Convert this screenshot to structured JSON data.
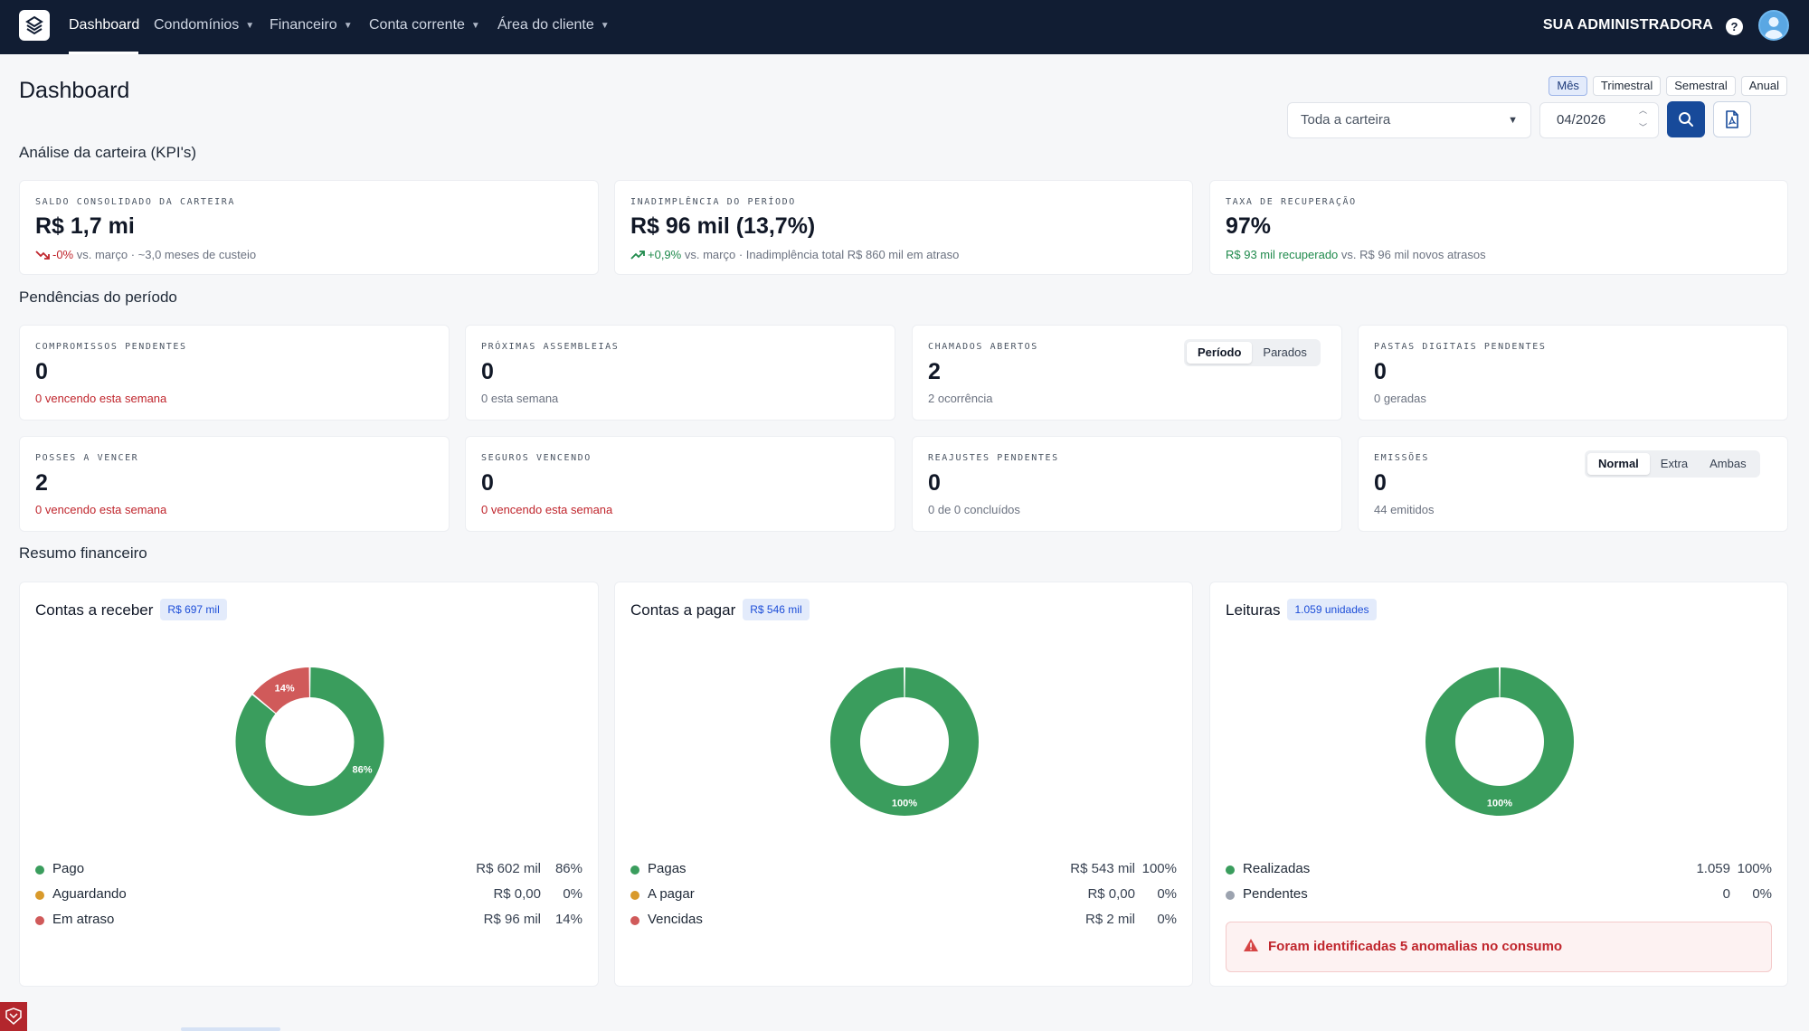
{
  "nav": {
    "items": [
      {
        "label": "Dashboard",
        "dropdown": false,
        "active": true
      },
      {
        "label": "Condomínios",
        "dropdown": true
      },
      {
        "label": "Financeiro",
        "dropdown": true
      },
      {
        "label": "Conta corrente",
        "dropdown": true
      },
      {
        "label": "Área do cliente",
        "dropdown": true
      }
    ],
    "org_name": "SUA ADMINISTRADORA",
    "help_icon": "?",
    "icons": [
      "logo-icon",
      "help-icon",
      "avatar"
    ]
  },
  "header": {
    "title": "Dashboard",
    "period_tabs": [
      {
        "label": "Mês",
        "active": true
      },
      {
        "label": "Trimestral"
      },
      {
        "label": "Semestral"
      },
      {
        "label": "Anual"
      }
    ],
    "portfolio_select": "Toda a carteira",
    "date_value": "04/2026"
  },
  "kpis": {
    "section_title": "Análise da carteira (KPI's)",
    "cards": [
      {
        "label": "SALDO CONSOLIDADO DA CARTEIRA",
        "value": "R$ 1,7 mi",
        "delta": "-0%",
        "delta_trend": "down",
        "sub": "vs. março · ~3,0 meses de custeio"
      },
      {
        "label": "INADIMPLÊNCIA DO PERÍODO",
        "value": "R$ 96 mil (13,7%)",
        "delta": "+0,9%",
        "delta_trend": "up",
        "sub": "vs. março · Inadimplência total R$ 860 mil em atraso"
      },
      {
        "label": "TAXA DE RECUPERAÇÃO",
        "value": "97%",
        "highlight": "R$ 93 mil recuperado",
        "sub": "vs. R$ 96 mil novos atrasos"
      }
    ]
  },
  "pendencias": {
    "section_title": "Pendências do período",
    "cards": [
      {
        "label": "COMPROMISSOS PENDENTES",
        "value": "0",
        "sub": "0 vencendo esta semana",
        "alert": true
      },
      {
        "label": "PRÓXIMAS ASSEMBLEIAS",
        "value": "0",
        "sub": "0 esta semana",
        "alert": false
      },
      {
        "label": "CHAMADOS ABERTOS",
        "value": "2",
        "sub": "2 ocorrência",
        "alert": false,
        "toggle": [
          "Período",
          "Parados"
        ],
        "toggle_active": 0
      },
      {
        "label": "PASTAS DIGITAIS PENDENTES",
        "value": "0",
        "sub": "0 geradas",
        "alert": false
      },
      {
        "label": "POSSES A VENCER",
        "value": "2",
        "sub": "0 vencendo esta semana",
        "alert": true
      },
      {
        "label": "SEGUROS VENCENDO",
        "value": "0",
        "sub": "0 vencendo esta semana",
        "alert": true
      },
      {
        "label": "REAJUSTES PENDENTES",
        "value": "0",
        "sub": "0 de 0 concluídos",
        "alert": false
      },
      {
        "label": "EMISSÕES",
        "value": "0",
        "sub": "44 emitidos",
        "alert": false,
        "toggle": [
          "Normal",
          "Extra",
          "Ambas"
        ],
        "toggle_active": 0
      }
    ]
  },
  "financeiro": {
    "section_title": "Resumo financeiro",
    "colors": {
      "green": "#3a9d5d",
      "orange": "#d99a2b",
      "red": "#d05a5a",
      "gray": "#9ca3af"
    },
    "cards": [
      {
        "title": "Contas a receber",
        "badge": "R$ 697 mil",
        "legend": [
          {
            "label": "Pago",
            "value": "R$ 602 mil",
            "pct": "86%",
            "color": "#3a9d5d"
          },
          {
            "label": "Aguardando",
            "value": "R$ 0,00",
            "pct": "0%",
            "color": "#d99a2b"
          },
          {
            "label": "Em atraso",
            "value": "R$ 96 mil",
            "pct": "14%",
            "color": "#d05a5a"
          }
        ]
      },
      {
        "title": "Contas a pagar",
        "badge": "R$ 546 mil",
        "legend": [
          {
            "label": "Pagas",
            "value": "R$ 543 mil",
            "pct": "100%",
            "color": "#3a9d5d"
          },
          {
            "label": "A pagar",
            "value": "R$ 0,00",
            "pct": "0%",
            "color": "#d99a2b"
          },
          {
            "label": "Vencidas",
            "value": "R$ 2 mil",
            "pct": "0%",
            "color": "#d05a5a"
          }
        ]
      },
      {
        "title": "Leituras",
        "badge": "1.059 unidades",
        "legend": [
          {
            "label": "Realizadas",
            "value": "1.059",
            "pct": "100%",
            "color": "#3a9d5d"
          },
          {
            "label": "Pendentes",
            "value": "0",
            "pct": "0%",
            "color": "#9ca3af"
          }
        ],
        "alert": "Foram identificadas 5 anomalias no consumo"
      }
    ]
  },
  "chart_data": [
    {
      "type": "pie",
      "title": "Contas a receber",
      "categories": [
        "Pago",
        "Aguardando",
        "Em atraso"
      ],
      "values": [
        86,
        0,
        14
      ],
      "value_labels": [
        "86%",
        "",
        "14%"
      ]
    },
    {
      "type": "pie",
      "title": "Contas a pagar",
      "categories": [
        "Pagas",
        "A pagar",
        "Vencidas"
      ],
      "values": [
        100,
        0,
        0
      ],
      "value_labels": [
        "100%",
        "",
        ""
      ]
    },
    {
      "type": "pie",
      "title": "Leituras",
      "categories": [
        "Realizadas",
        "Pendentes"
      ],
      "values": [
        100,
        0
      ],
      "value_labels": [
        "100%",
        ""
      ]
    }
  ]
}
